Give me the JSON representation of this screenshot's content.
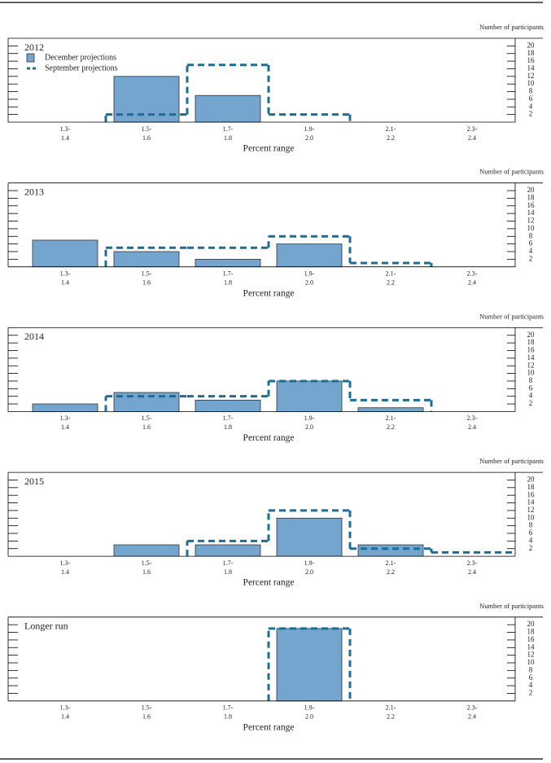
{
  "chart_data": [
    {
      "type": "bar",
      "title": "2012",
      "xlabel": "Percent range",
      "ylabel": "Number of participants",
      "legend": true,
      "categories": [
        [
          "1.3-",
          "1.4"
        ],
        [
          "1.5-",
          "1.6"
        ],
        [
          "1.7-",
          "1.8"
        ],
        [
          "1.9-",
          "2.0"
        ],
        [
          "2.1-",
          "2.2"
        ],
        [
          "2.3-",
          "2.4"
        ]
      ],
      "series": [
        {
          "name": "December projections",
          "style": "bar",
          "color": "#73a5cf",
          "values": [
            0,
            12,
            7,
            0,
            0,
            0
          ]
        },
        {
          "name": "September projections",
          "style": "step",
          "color": "#1a6f9a",
          "values": [
            0,
            2,
            15,
            2,
            0,
            0
          ]
        }
      ],
      "ylim": [
        0,
        22
      ],
      "yticks": [
        2,
        4,
        6,
        8,
        10,
        12,
        14,
        16,
        18,
        20
      ]
    },
    {
      "type": "bar",
      "title": "2013",
      "xlabel": "Percent range",
      "ylabel": "Number of participants",
      "legend": false,
      "categories": [
        [
          "1.3-",
          "1.4"
        ],
        [
          "1.5-",
          "1.6"
        ],
        [
          "1.7-",
          "1.8"
        ],
        [
          "1.9-",
          "2.0"
        ],
        [
          "2.1-",
          "2.2"
        ],
        [
          "2.3-",
          "2.4"
        ]
      ],
      "series": [
        {
          "style": "bar",
          "color": "#73a5cf",
          "values": [
            7,
            4,
            2,
            6,
            0,
            0
          ]
        },
        {
          "style": "step",
          "color": "#1a6f9a",
          "values": [
            0,
            5,
            5,
            8,
            1,
            0
          ]
        }
      ],
      "ylim": [
        0,
        22
      ],
      "yticks": [
        2,
        4,
        6,
        8,
        10,
        12,
        14,
        16,
        18,
        20
      ]
    },
    {
      "type": "bar",
      "title": "2014",
      "xlabel": "Percent range",
      "ylabel": "Number of participants",
      "legend": false,
      "categories": [
        [
          "1.3-",
          "1.4"
        ],
        [
          "1.5-",
          "1.6"
        ],
        [
          "1.7-",
          "1.8"
        ],
        [
          "1.9-",
          "2.0"
        ],
        [
          "2.1-",
          "2.2"
        ],
        [
          "2.3-",
          "2.4"
        ]
      ],
      "series": [
        {
          "style": "bar",
          "color": "#73a5cf",
          "values": [
            2,
            5,
            3,
            8,
            1,
            0
          ]
        },
        {
          "style": "step",
          "color": "#1a6f9a",
          "values": [
            0,
            4,
            4,
            8,
            3,
            0
          ]
        }
      ],
      "ylim": [
        0,
        22
      ],
      "yticks": [
        2,
        4,
        6,
        8,
        10,
        12,
        14,
        16,
        18,
        20
      ]
    },
    {
      "type": "bar",
      "title": "2015",
      "xlabel": "Percent range",
      "ylabel": "Number of participants",
      "legend": false,
      "categories": [
        [
          "1.3-",
          "1.4"
        ],
        [
          "1.5-",
          "1.6"
        ],
        [
          "1.7-",
          "1.8"
        ],
        [
          "1.9-",
          "2.0"
        ],
        [
          "2.1-",
          "2.2"
        ],
        [
          "2.3-",
          "2.4"
        ]
      ],
      "series": [
        {
          "style": "bar",
          "color": "#73a5cf",
          "values": [
            0,
            3,
            3,
            10,
            3,
            0
          ]
        },
        {
          "style": "step",
          "color": "#1a6f9a",
          "values": [
            0,
            0,
            4,
            12,
            2,
            1
          ]
        }
      ],
      "ylim": [
        0,
        22
      ],
      "yticks": [
        2,
        4,
        6,
        8,
        10,
        12,
        14,
        16,
        18,
        20
      ]
    },
    {
      "type": "bar",
      "title": "Longer run",
      "xlabel": "Percent range",
      "ylabel": "Number of participants",
      "legend": false,
      "categories": [
        [
          "1.3-",
          "1.4"
        ],
        [
          "1.5-",
          "1.6"
        ],
        [
          "1.7-",
          "1.8"
        ],
        [
          "1.9-",
          "2.0"
        ],
        [
          "2.1-",
          "2.2"
        ],
        [
          "2.3-",
          "2.4"
        ]
      ],
      "series": [
        {
          "style": "bar",
          "color": "#73a5cf",
          "values": [
            0,
            0,
            0,
            19,
            0,
            0
          ]
        },
        {
          "style": "step",
          "color": "#1a6f9a",
          "values": [
            0,
            0,
            0,
            19,
            0,
            0
          ]
        }
      ],
      "ylim": [
        0,
        22
      ],
      "yticks": [
        2,
        4,
        6,
        8,
        10,
        12,
        14,
        16,
        18,
        20
      ]
    }
  ]
}
